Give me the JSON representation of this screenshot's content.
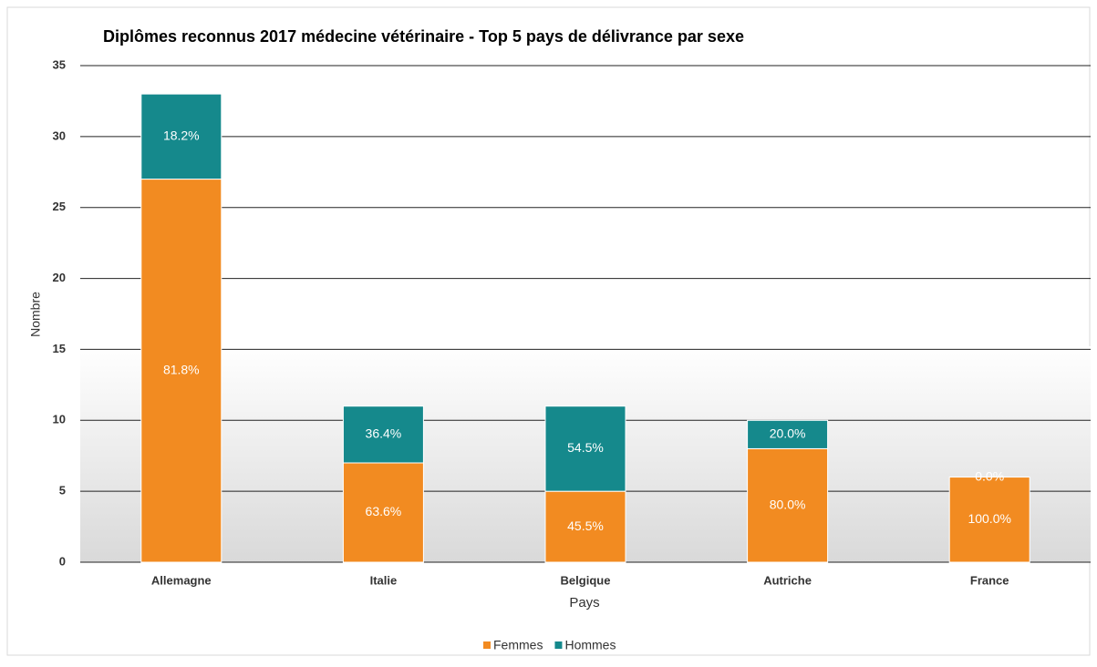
{
  "chart_data": {
    "type": "stacked_bar",
    "title": "Diplômes reconnus 2017 médecine vétérinaire - Top 5 pays de délivrance par sexe",
    "x_label": "Pays",
    "y_label": "Nombre",
    "categories": [
      "Allemagne",
      "Italie",
      "Belgique",
      "Autriche",
      "France"
    ],
    "series": [
      {
        "name": "Femmes",
        "color": "#f28b21",
        "values": [
          27,
          7,
          5,
          8,
          6
        ],
        "share_labels": [
          "81.8%",
          "63.6%",
          "45.5%",
          "80.0%",
          "100.0%"
        ]
      },
      {
        "name": "Hommes",
        "color": "#15898c",
        "values": [
          6,
          4,
          6,
          2,
          0
        ],
        "share_labels": [
          "18.2%",
          "36.4%",
          "54.5%",
          "20.0%",
          "0.0%"
        ]
      }
    ],
    "ylim": [
      0,
      35
    ],
    "yticks": [
      0,
      5,
      10,
      15,
      20,
      25,
      30,
      35
    ],
    "grid": true,
    "legend": "bottom"
  }
}
